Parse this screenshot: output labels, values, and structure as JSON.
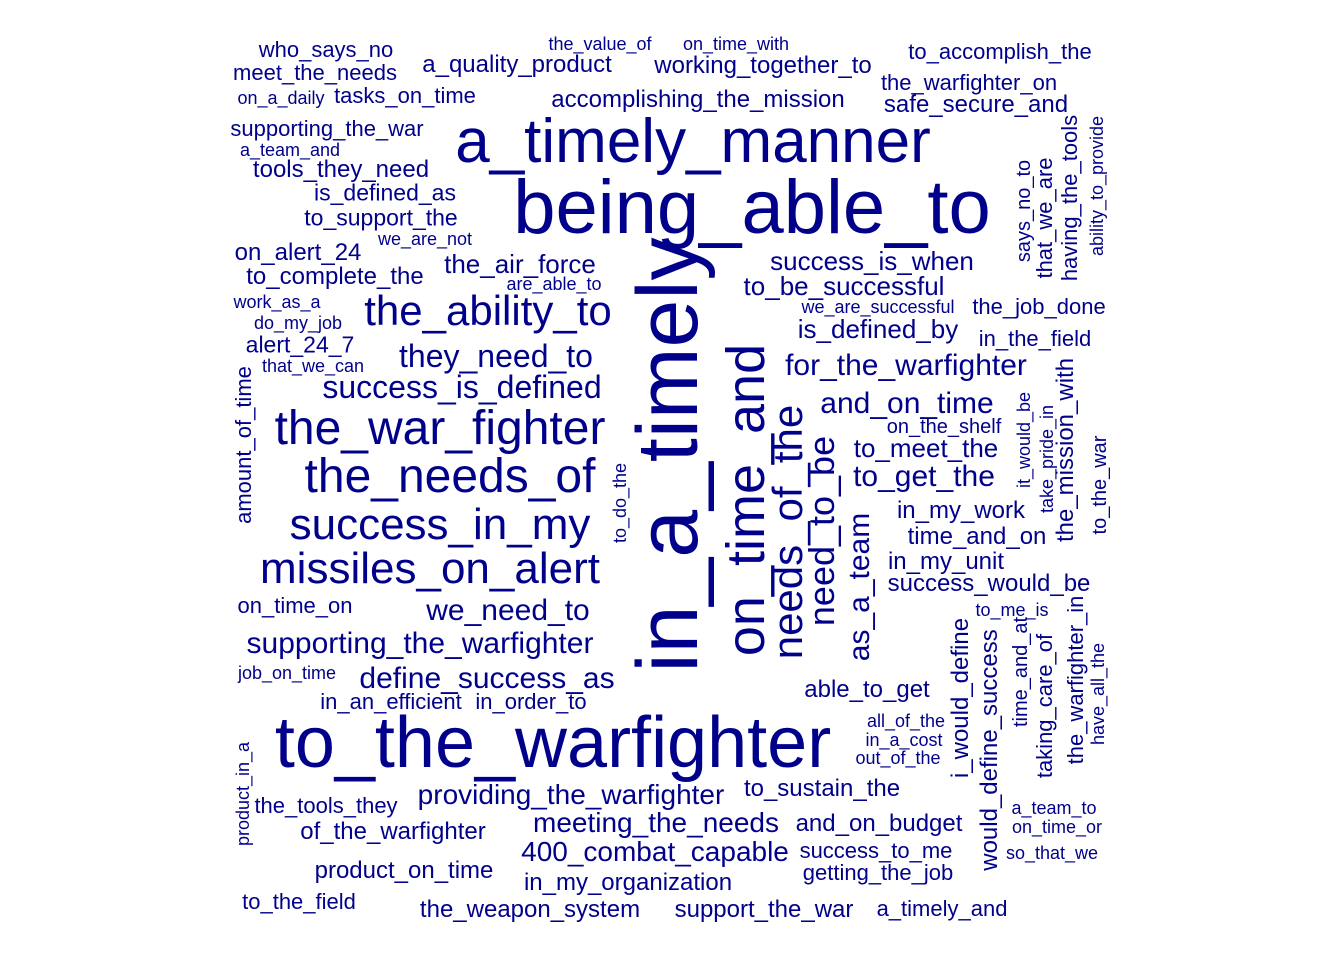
{
  "color": "#00008B",
  "words": [
    {
      "text": "who_says_no"
    },
    {
      "text": "meet_the_needs"
    },
    {
      "text": "on_a_daily"
    },
    {
      "text": "tasks_on_time"
    },
    {
      "text": "supporting_the_war"
    },
    {
      "text": "a_team_and"
    },
    {
      "text": "tools_they_need"
    },
    {
      "text": "is_defined_as"
    },
    {
      "text": "to_support_the"
    },
    {
      "text": "we_are_not"
    },
    {
      "text": "on_alert_24"
    },
    {
      "text": "to_complete_the"
    },
    {
      "text": "work_as_a"
    },
    {
      "text": "do_my_job"
    },
    {
      "text": "alert_24_7"
    },
    {
      "text": "that_we_can"
    },
    {
      "text": "amount_of_time"
    },
    {
      "text": "on_time_on"
    },
    {
      "text": "job_on_time"
    },
    {
      "text": "product_in_a"
    },
    {
      "text": "the_tools_they"
    },
    {
      "text": "of_the_warfighter"
    },
    {
      "text": "product_on_time"
    },
    {
      "text": "to_the_field"
    },
    {
      "text": "the_value_of"
    },
    {
      "text": "on_time_with"
    },
    {
      "text": "a_quality_product"
    },
    {
      "text": "working_together_to"
    },
    {
      "text": "accomplishing_the_mission"
    },
    {
      "text": "a_timely_manner"
    },
    {
      "text": "being_able_to"
    },
    {
      "text": "the_air_force"
    },
    {
      "text": "are_able_to"
    },
    {
      "text": "the_ability_to"
    },
    {
      "text": "they_need_to"
    },
    {
      "text": "success_is_defined"
    },
    {
      "text": "the_war_fighter"
    },
    {
      "text": "the_needs_of"
    },
    {
      "text": "success_in_my"
    },
    {
      "text": "missiles_on_alert"
    },
    {
      "text": "we_need_to"
    },
    {
      "text": "supporting_the_warfighter"
    },
    {
      "text": "define_success_as"
    },
    {
      "text": "in_an_efficient"
    },
    {
      "text": "in_order_to"
    },
    {
      "text": "to_the_warfighter"
    },
    {
      "text": "providing_the_warfighter"
    },
    {
      "text": "meeting_the_needs"
    },
    {
      "text": "400_combat_capable"
    },
    {
      "text": "in_my_organization"
    },
    {
      "text": "the_weapon_system"
    },
    {
      "text": "support_the_war"
    },
    {
      "text": "in_a_timely"
    },
    {
      "text": "on_time_and"
    },
    {
      "text": "needs_of_the"
    },
    {
      "text": "need_to_be"
    },
    {
      "text": "as_a_team"
    },
    {
      "text": "to_do_the"
    },
    {
      "text": "to_accomplish_the"
    },
    {
      "text": "the_warfighter_on"
    },
    {
      "text": "safe_secure_and"
    },
    {
      "text": "success_is_when"
    },
    {
      "text": "to_be_successful"
    },
    {
      "text": "we_are_successful"
    },
    {
      "text": "the_job_done"
    },
    {
      "text": "is_defined_by"
    },
    {
      "text": "in_the_field"
    },
    {
      "text": "for_the_warfighter"
    },
    {
      "text": "and_on_time"
    },
    {
      "text": "on_the_shelf"
    },
    {
      "text": "to_meet_the"
    },
    {
      "text": "to_get_the"
    },
    {
      "text": "in_my_work"
    },
    {
      "text": "time_and_on"
    },
    {
      "text": "in_my_unit"
    },
    {
      "text": "success_would_be"
    },
    {
      "text": "to_me_is"
    },
    {
      "text": "able_to_get"
    },
    {
      "text": "all_of_the"
    },
    {
      "text": "in_a_cost"
    },
    {
      "text": "out_of_the"
    },
    {
      "text": "to_sustain_the"
    },
    {
      "text": "and_on_budget"
    },
    {
      "text": "success_to_me"
    },
    {
      "text": "getting_the_job"
    },
    {
      "text": "a_timely_and"
    },
    {
      "text": "a_team_to"
    },
    {
      "text": "on_time_or"
    },
    {
      "text": "so_that_we"
    },
    {
      "text": "says_no_to"
    },
    {
      "text": "that_we_are"
    },
    {
      "text": "having_the_tools"
    },
    {
      "text": "ability_to_provide"
    },
    {
      "text": "it_would_be"
    },
    {
      "text": "take_pride_in"
    },
    {
      "text": "the_mission_with"
    },
    {
      "text": "to_the_war"
    },
    {
      "text": "i_would_define"
    },
    {
      "text": "would_define_success"
    },
    {
      "text": "time_and_at"
    },
    {
      "text": "taking_care_of"
    },
    {
      "text": "the_warfighter_in"
    },
    {
      "text": "have_all_the"
    }
  ]
}
